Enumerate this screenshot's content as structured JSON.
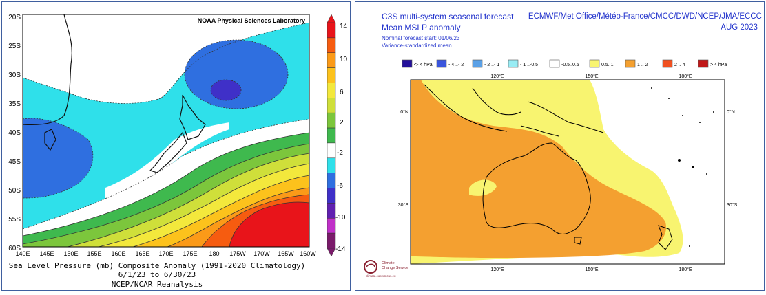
{
  "left_map": {
    "credit": "NOAA Physical Sciences Laboratory",
    "lat_labels": [
      "20S",
      "25S",
      "30S",
      "35S",
      "40S",
      "45S",
      "50S",
      "55S",
      "60S"
    ],
    "lon_labels": [
      "140E",
      "145E",
      "150E",
      "155E",
      "160E",
      "165E",
      "170E",
      "175E",
      "180",
      "175W",
      "170W",
      "165W",
      "160W"
    ],
    "colorbar_labels": [
      "14",
      "10",
      "6",
      "2",
      "-2",
      "-6",
      "-10",
      "-14"
    ],
    "colorbar_colors": [
      "#e8141a",
      "#f65c10",
      "#fb9a18",
      "#fcc21c",
      "#f3e83c",
      "#cfdf3a",
      "#7cc63c",
      "#3fb94e",
      "#ffffff",
      "#2fe0ea",
      "#2f6fe0",
      "#3f30c8",
      "#6020b0",
      "#c030c8",
      "#7a1a6a"
    ],
    "caption_line1": "Sea Level Pressure (mb) Composite Anomaly (1991-2020 Climatology)",
    "caption_line2": "6/1/23   to 6/30/23",
    "caption_line3": "NCEP/NCAR Reanalysis"
  },
  "right_map": {
    "title_line1": "C3S multi-system seasonal forecast",
    "title_line2": "Mean MSLP anomaly",
    "subtitle_line1": "Nominal forecast start: 01/06/23",
    "subtitle_line2": "Variance-standardized mean",
    "centres": "ECMWF/Met Office/Météo-France/CMCC/DWD/NCEP/JMA/ECCC",
    "month": "AUG 2023",
    "legend": [
      {
        "label": "<- 4 hPa",
        "color": "#23109a"
      },
      {
        "label": "- 4 ..- 2",
        "color": "#3a55dc"
      },
      {
        "label": "- 2 ..- 1",
        "color": "#5aa0e6"
      },
      {
        "label": "- 1 ..-0.5",
        "color": "#98ecf4"
      },
      {
        "label": "-0.5..0.5",
        "color": "#ffffff"
      },
      {
        "label": "0.5..1",
        "color": "#f8f470"
      },
      {
        "label": "1 .. 2",
        "color": "#f4a030"
      },
      {
        "label": "2 .. 4",
        "color": "#f05020"
      },
      {
        "label": "> 4 hPa",
        "color": "#c01818"
      }
    ],
    "top_lon_labels": [
      "120°E",
      "150°E",
      "180°E"
    ],
    "bottom_lon_labels": [
      "120°E",
      "150°E",
      "180°E"
    ],
    "left_lat_labels": [
      "0°N",
      "30°S"
    ],
    "right_lat_labels": [
      "0°N",
      "30°S"
    ],
    "logo_text_line1": "Climate",
    "logo_text_line2": "Change Service",
    "logo_url_text": "climate.copernicus.eu"
  }
}
